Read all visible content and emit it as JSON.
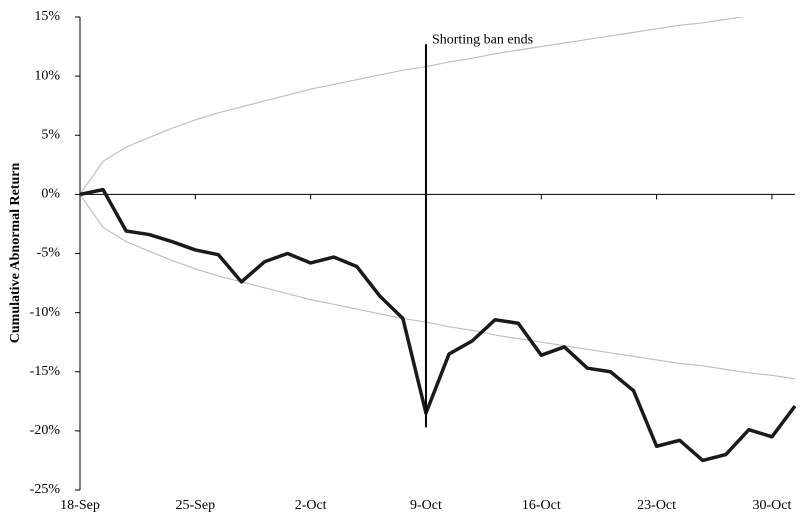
{
  "chart_data": {
    "type": "line",
    "y_label": "Cumulative Abnormal Return",
    "categories": [
      "18-Sep",
      null,
      null,
      null,
      null,
      "25-Sep",
      null,
      null,
      null,
      null,
      "2-Oct",
      null,
      null,
      null,
      null,
      "9-Oct",
      null,
      null,
      null,
      null,
      "16-Oct",
      null,
      null,
      null,
      null,
      "23-Oct",
      null,
      null,
      null,
      null,
      "30-Oct",
      null
    ],
    "series": [
      {
        "color": "#c0c0c0",
        "width": 1.2,
        "values": [
          0,
          2.8,
          4.0,
          4.8,
          5.6,
          6.3,
          6.9,
          7.4,
          7.9,
          8.4,
          8.9,
          9.3,
          9.7,
          10.1,
          10.5,
          10.8,
          11.2,
          11.5,
          11.9,
          12.2,
          12.5,
          12.8,
          13.1,
          13.4,
          13.7,
          14.0,
          14.3,
          14.5,
          14.8,
          15.1,
          15.3,
          15.6
        ]
      },
      {
        "color": "#c0c0c0",
        "width": 1.2,
        "values": [
          0,
          -2.8,
          -4.0,
          -4.8,
          -5.6,
          -6.3,
          -6.9,
          -7.4,
          -7.9,
          -8.4,
          -8.9,
          -9.3,
          -9.7,
          -10.1,
          -10.5,
          -10.8,
          -11.2,
          -11.5,
          -11.9,
          -12.2,
          -12.5,
          -12.8,
          -13.1,
          -13.4,
          -13.7,
          -14.0,
          -14.3,
          -14.5,
          -14.8,
          -15.1,
          -15.3,
          -15.6
        ]
      },
      {
        "color": "#1a1a1a",
        "width": 3.5,
        "values": [
          0,
          0.4,
          -3.1,
          -3.4,
          -4.0,
          -4.7,
          -5.1,
          -7.4,
          -5.7,
          -5.0,
          -5.8,
          -5.3,
          -6.1,
          -8.6,
          -10.5,
          -18.5,
          -13.5,
          -12.4,
          -10.6,
          -10.9,
          -13.6,
          -12.9,
          -14.7,
          -15.0,
          -16.6,
          -21.3,
          -20.8,
          -22.5,
          -22.0,
          -19.9,
          -20.5,
          -17.9
        ]
      }
    ],
    "annotation": {
      "text": "Shorting ban ends",
      "x": "9-Oct",
      "span": [
        12.7,
        -19.7
      ]
    },
    "ylim": [
      -25,
      15
    ],
    "yticks": [
      {
        "value": -25,
        "label": "-25%"
      },
      {
        "value": -20,
        "label": "-20%"
      },
      {
        "value": -15,
        "label": "-15%"
      },
      {
        "value": -10,
        "label": "-10%"
      },
      {
        "value": -5,
        "label": "-5%"
      },
      {
        "value": 0,
        "label": "0%"
      },
      {
        "value": 5,
        "label": "5%"
      },
      {
        "value": 10,
        "label": "10%"
      },
      {
        "value": 15,
        "label": "15%"
      }
    ],
    "grid": false
  }
}
